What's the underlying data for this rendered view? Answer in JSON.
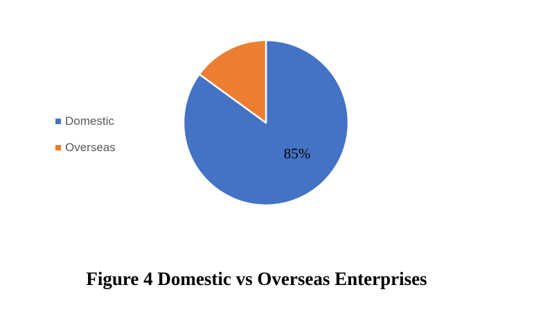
{
  "chart_data": {
    "type": "pie",
    "labels": [
      "Domestic",
      "Overseas"
    ],
    "values": [
      85,
      15
    ],
    "colors": [
      "#4472C4",
      "#ED7D31"
    ],
    "data_label": "85%",
    "data_label_on_slice": "Domestic",
    "legend_position": "left",
    "start_angle_deg": 0,
    "direction": "clockwise",
    "slice_border_color": "#FFFFFF"
  },
  "legend": {
    "items": [
      {
        "label": "Domestic",
        "color": "#4472C4"
      },
      {
        "label": "Overseas",
        "color": "#ED7D31"
      }
    ]
  },
  "caption": "Figure 4 Domestic vs Overseas Enterprises",
  "colors": {
    "background": "#FFFFFF",
    "legend_text": "#595959",
    "data_label_text": "#000000",
    "caption_text": "#000000"
  }
}
